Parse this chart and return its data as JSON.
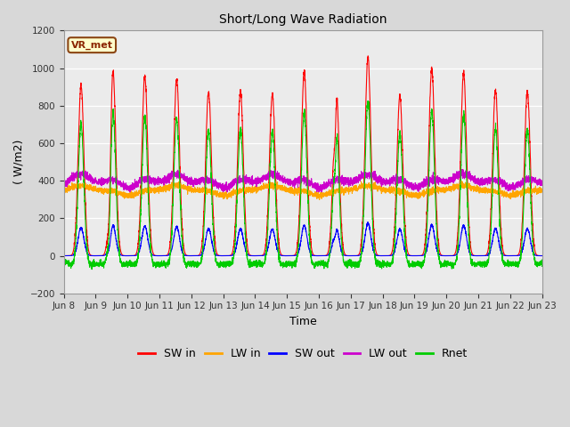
{
  "title": "Short/Long Wave Radiation",
  "xlabel": "Time",
  "ylabel": "( W/m2)",
  "ylim": [
    -200,
    1200
  ],
  "yticks": [
    -200,
    0,
    200,
    400,
    600,
    800,
    1000,
    1200
  ],
  "x_tick_labels": [
    "Jun 8",
    "Jun 9",
    "Jun 10",
    "Jun 11",
    "Jun 12",
    "Jun 13",
    "Jun 14",
    "Jun 15",
    "Jun 16",
    "Jun 17",
    "Jun 18",
    "Jun 19",
    "Jun 20",
    "Jun 21",
    "Jun 22",
    "Jun 23"
  ],
  "annotation_text": "VR_met",
  "legend_labels": [
    "SW in",
    "LW in",
    "SW out",
    "LW out",
    "Rnet"
  ],
  "colors": {
    "SW_in": "#FF0000",
    "LW_in": "#FFA500",
    "SW_out": "#0000FF",
    "LW_out": "#CC00CC",
    "Rnet": "#00CC00"
  },
  "n_days": 15,
  "pts_per_day": 288
}
